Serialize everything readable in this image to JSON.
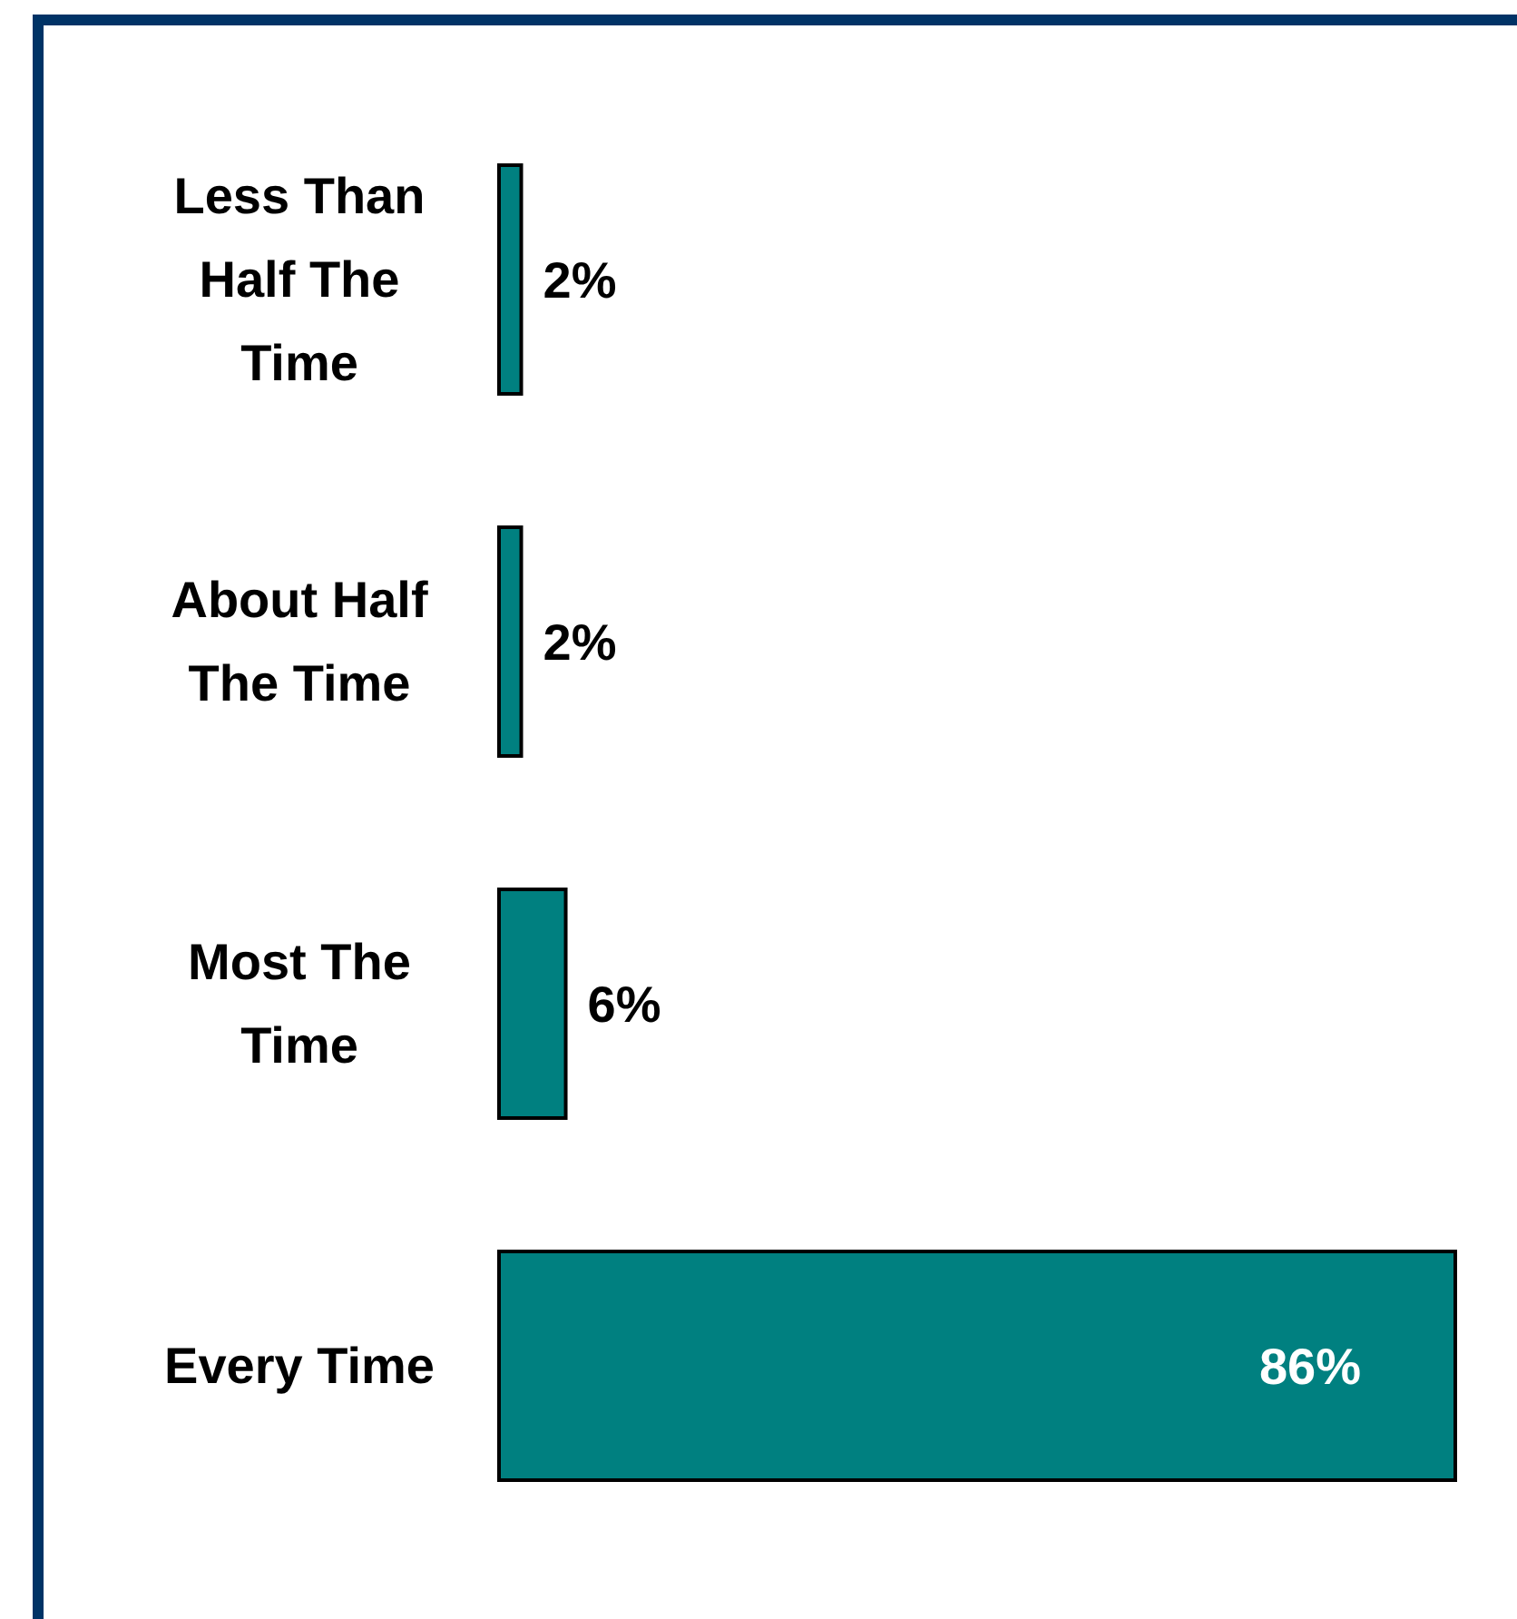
{
  "chart_data": {
    "type": "bar",
    "orientation": "horizontal",
    "categories": [
      "Less Than Half The Time",
      "About Half The Time",
      "Most The Time",
      "Every Time"
    ],
    "values": [
      2,
      2,
      6,
      86
    ],
    "color": "#008080",
    "value_labels": [
      "2%",
      "2%",
      "6%",
      "86%"
    ]
  }
}
